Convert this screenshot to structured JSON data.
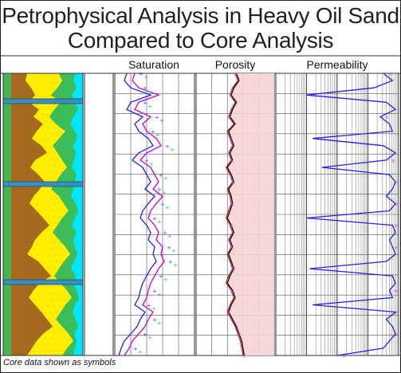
{
  "title_line1": "Petrophysical Analysis in Heavy Oil Sand",
  "title_line2": "Compared to Core Analysis",
  "tracks": {
    "saturation": "Saturation",
    "porosity": "Porosity",
    "permeability": "Permeability"
  },
  "footnote": "Core data shown as symbols",
  "colors": {
    "water": "#00e5ff",
    "sand": "#ffee00",
    "shale": "#a66a1e",
    "green": "#3cbd5a",
    "curve_magenta": "#cc00cc",
    "curve_blue": "#2222ee",
    "core_green": "#22cc44",
    "core_magenta": "#ee22ee",
    "core_blue": "#3344ff",
    "fill_pink": "#f6d4d4"
  },
  "chart_data": [
    {
      "type": "area",
      "track": "lithology",
      "series": [
        {
          "values": [
            0.3,
            0.28,
            0.35,
            0.4,
            0.32,
            0.45,
            0.38,
            0.5,
            0.42,
            0.36,
            0.48,
            0.55,
            0.4,
            0.34,
            0.44,
            0.52,
            0.46,
            0.38,
            0.33,
            0.42,
            0.5,
            0.58,
            0.48,
            0.4,
            0.36,
            0.3,
            0.44,
            0.52,
            0.6,
            0.46,
            0.38,
            0.32,
            0.4,
            0.48,
            0.55,
            0.62,
            0.5,
            0.42,
            0.36,
            0.3
          ]
        },
        {
          "values": [
            0.7,
            0.74,
            0.68,
            0.6,
            0.72,
            0.64,
            0.58,
            0.66,
            0.78,
            0.7,
            0.62,
            0.68,
            0.74,
            0.8,
            0.72,
            0.66,
            0.6,
            0.7,
            0.76,
            0.82,
            0.74,
            0.68,
            0.62,
            0.7,
            0.78,
            0.84,
            0.76,
            0.7,
            0.64,
            0.72,
            0.8,
            0.86,
            0.78,
            0.72,
            0.66,
            0.74,
            0.82,
            0.88,
            0.8,
            0.74
          ]
        },
        {
          "values": [
            0.9,
            0.88,
            0.92,
            0.86,
            0.9,
            0.94,
            0.88,
            0.84,
            0.9,
            0.93,
            0.87,
            0.91,
            0.89,
            0.86,
            0.92,
            0.9,
            0.88,
            0.85,
            0.91,
            0.94,
            0.9,
            0.86,
            0.92,
            0.88,
            0.9,
            0.93,
            0.89,
            0.85,
            0.91,
            0.88,
            0.92,
            0.95,
            0.9,
            0.87,
            0.91,
            0.94,
            0.89,
            0.92,
            0.9,
            0.88
          ]
        }
      ]
    },
    {
      "type": "line",
      "track": "saturation",
      "series": [
        {
          "values": [
            0.25,
            0.22,
            0.3,
            0.55,
            0.3,
            0.25,
            0.45,
            0.35,
            0.4,
            0.52,
            0.58,
            0.4,
            0.32,
            0.45,
            0.5,
            0.55,
            0.48,
            0.6,
            0.52,
            0.45,
            0.42,
            0.5,
            0.55,
            0.52,
            0.6,
            0.58,
            0.62,
            0.55,
            0.5,
            0.45,
            0.42,
            0.4,
            0.35,
            0.48,
            0.42,
            0.38,
            0.3,
            0.22,
            0.18,
            0.12
          ]
        },
        {
          "values": [
            0.15,
            0.12,
            0.2,
            0.45,
            0.2,
            0.15,
            0.35,
            0.25,
            0.3,
            0.42,
            0.48,
            0.3,
            0.22,
            0.35,
            0.4,
            0.45,
            0.38,
            0.5,
            0.42,
            0.35,
            0.32,
            0.4,
            0.45,
            0.42,
            0.5,
            0.48,
            0.52,
            0.45,
            0.4,
            0.35,
            0.32,
            0.3,
            0.25,
            0.38,
            0.32,
            0.28,
            0.2,
            0.12,
            0.08,
            0.05
          ]
        }
      ]
    },
    {
      "type": "line",
      "track": "porosity",
      "series": [
        {
          "values": [
            0.3,
            0.28,
            0.32,
            0.34,
            0.3,
            0.33,
            0.35,
            0.31,
            0.36,
            0.34,
            0.32,
            0.35,
            0.33,
            0.37,
            0.34,
            0.32,
            0.36,
            0.34,
            0.33,
            0.35,
            0.37,
            0.34,
            0.32,
            0.35,
            0.33,
            0.36,
            0.34,
            0.32,
            0.35,
            0.37,
            0.33,
            0.31,
            0.34,
            0.36,
            0.33,
            0.3,
            0.28,
            0.26,
            0.25,
            0.24
          ]
        },
        {
          "values": [
            0.29,
            0.27,
            0.31,
            0.33,
            0.29,
            0.32,
            0.34,
            0.3,
            0.35,
            0.33,
            0.31,
            0.34,
            0.32,
            0.36,
            0.33,
            0.31,
            0.35,
            0.33,
            0.32,
            0.34,
            0.36,
            0.33,
            0.31,
            0.34,
            0.32,
            0.35,
            0.33,
            0.31,
            0.34,
            0.36,
            0.32,
            0.3,
            0.33,
            0.35,
            0.32,
            0.29,
            0.27,
            0.25,
            0.24,
            0.23
          ]
        }
      ]
    },
    {
      "type": "line",
      "track": "permeability",
      "series": [
        {
          "values": [
            3.5,
            3.8,
            3.2,
            1.0,
            3.6,
            3.9,
            3.4,
            3.7,
            3.8,
            1.2,
            3.5,
            3.9,
            3.6,
            1.5,
            3.7,
            3.9,
            3.8,
            3.6,
            3.9,
            3.7,
            1.0,
            3.8,
            3.9,
            3.7,
            3.8,
            3.9,
            3.6,
            1.1,
            3.8,
            3.9,
            3.7,
            3.8,
            1.2,
            3.9,
            3.6,
            3.8,
            3.9,
            3.7,
            3.5,
            2.0
          ]
        }
      ]
    }
  ]
}
